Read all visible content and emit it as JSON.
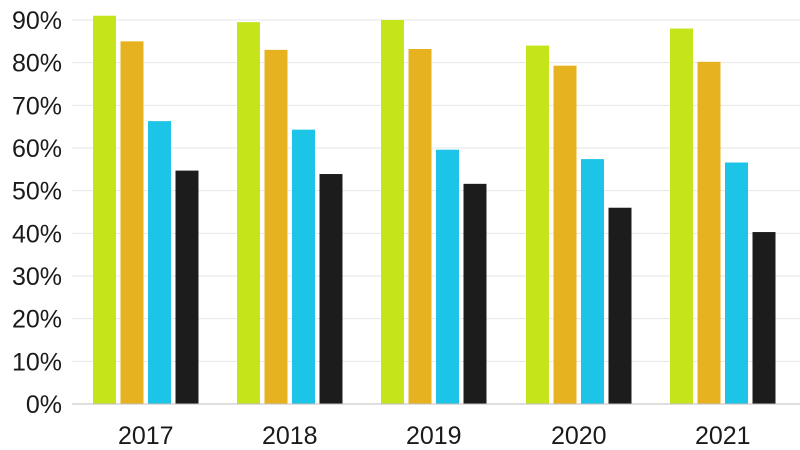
{
  "chart_data": {
    "type": "bar",
    "categories": [
      "2017",
      "2018",
      "2019",
      "2020",
      "2021"
    ],
    "series": [
      {
        "color": "#c5e41a",
        "values": [
          91,
          89.5,
          90,
          84,
          88
        ]
      },
      {
        "color": "#e7b21f",
        "values": [
          85,
          83,
          83.2,
          79.3,
          80.2
        ]
      },
      {
        "color": "#1cc4e8",
        "values": [
          66.3,
          64.3,
          59.6,
          57.4,
          56.6
        ]
      },
      {
        "color": "#1c1c1c",
        "values": [
          54.7,
          53.9,
          51.6,
          46,
          40.3
        ]
      }
    ],
    "ylim": [
      0,
      90
    ],
    "yticks": [
      0,
      10,
      20,
      30,
      40,
      50,
      60,
      70,
      80,
      90
    ],
    "ytick_format": "{v}%",
    "grid": true
  }
}
